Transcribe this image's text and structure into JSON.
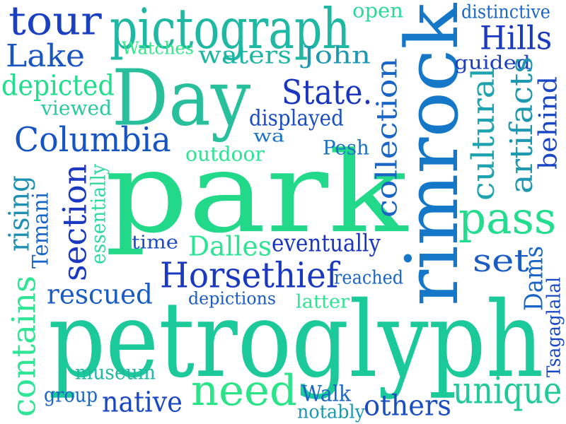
{
  "words": [
    {
      "text": "park",
      "color": "#22d98a"
    },
    {
      "text": "petroglyph",
      "color": "#1bc99a"
    },
    {
      "text": "rimrock",
      "color": "#1577c7"
    },
    {
      "text": "Day",
      "color": "#27bf9c"
    },
    {
      "text": "pictograph",
      "color": "#1fb8a2"
    },
    {
      "text": "tour",
      "color": "#1a3fc0"
    },
    {
      "text": "Lake",
      "color": "#1a55c4"
    },
    {
      "text": "depicted",
      "color": "#22dd8d"
    },
    {
      "text": "viewed",
      "color": "#2ac89f"
    },
    {
      "text": "Columbia",
      "color": "#1654c4"
    },
    {
      "text": "Watches",
      "color": "#31e889"
    },
    {
      "text": "waters",
      "color": "#1db5a4"
    },
    {
      "text": "John",
      "color": "#1e98b1"
    },
    {
      "text": "open",
      "color": "#2ad99a"
    },
    {
      "text": "distinctive",
      "color": "#1a66c6"
    },
    {
      "text": "Hills",
      "color": "#1a39c0"
    },
    {
      "text": "guided",
      "color": "#1a3fc0"
    },
    {
      "text": "State.",
      "color": "#1a35be"
    },
    {
      "text": "displayed",
      "color": "#1a4ec2"
    },
    {
      "text": "wa",
      "color": "#1a73c6"
    },
    {
      "text": "outdoor",
      "color": "#2be494"
    },
    {
      "text": "Pesh",
      "color": "#1a73c6"
    },
    {
      "text": "collection",
      "color": "#1a66c6"
    },
    {
      "text": "cultural",
      "color": "#1da3b0"
    },
    {
      "text": "artifacts",
      "color": "#1e98b1"
    },
    {
      "text": "behind",
      "color": "#1a47c2"
    },
    {
      "text": "pass",
      "color": "#22dd8d"
    },
    {
      "text": "section",
      "color": "#1a39c0"
    },
    {
      "text": "essentially",
      "color": "#2fd99b"
    },
    {
      "text": "rising",
      "color": "#1e90b1"
    },
    {
      "text": "Temani",
      "color": "#1a66c6"
    },
    {
      "text": "time",
      "color": "#1a4ec2"
    },
    {
      "text": "Dalles",
      "color": "#2be494"
    },
    {
      "text": "eventually",
      "color": "#1a35be"
    },
    {
      "text": "set",
      "color": "#1a5cc4"
    },
    {
      "text": "Horsethief",
      "color": "#1a39c0"
    },
    {
      "text": "reached",
      "color": "#1a66c6"
    },
    {
      "text": "rescued",
      "color": "#1a5cc4"
    },
    {
      "text": "depictions",
      "color": "#1a5cc4"
    },
    {
      "text": "latter",
      "color": "#2fe494"
    },
    {
      "text": "Dams",
      "color": "#1a66c6"
    },
    {
      "text": "Tsagaglalal",
      "color": "#1a47c2"
    },
    {
      "text": "contains",
      "color": "#2fe494"
    },
    {
      "text": "museum",
      "color": "#22b8a2"
    },
    {
      "text": "group",
      "color": "#1a66c6"
    },
    {
      "text": "native",
      "color": "#1a47c2"
    },
    {
      "text": "need",
      "color": "#2ae488"
    },
    {
      "text": "Walk",
      "color": "#1a66c6"
    },
    {
      "text": "notably",
      "color": "#1a98b1"
    },
    {
      "text": "others",
      "color": "#1a4ec2"
    },
    {
      "text": "unique",
      "color": "#1fc99a"
    }
  ]
}
